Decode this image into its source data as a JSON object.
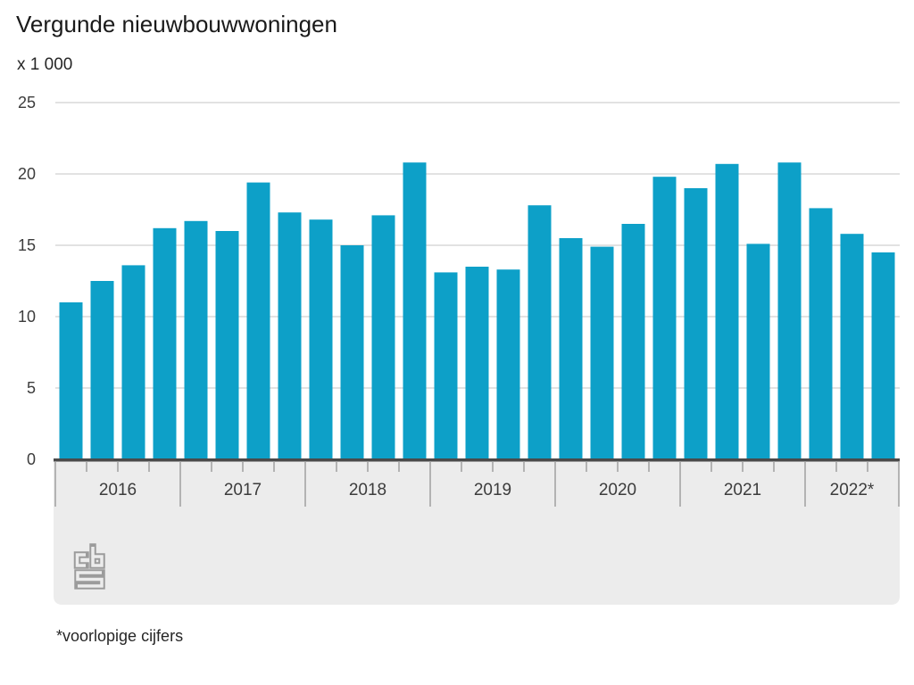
{
  "title": "Vergunde nieuwbouwwoningen",
  "unit_label": "x 1 000",
  "footnote": "*voorlopige cijfers",
  "logo_name": "cbs-logo",
  "colors": {
    "bar": "#0da0c8",
    "gridline": "#c6c6c6",
    "axis_line": "#4a4a4a",
    "footer_band": "#ececec",
    "tick_line": "#a0a0a0",
    "title_text": "#1a1a1a",
    "axis_text": "#3c3c3c",
    "logo_stroke": "#9b9b9b"
  },
  "chart_data": {
    "type": "bar",
    "title": "Vergunde nieuwbouwwoningen",
    "unit": "x 1 000",
    "ylabel": "x 1 000",
    "ylim": [
      0,
      25
    ],
    "yticks": [
      0,
      5,
      10,
      15,
      20,
      25
    ],
    "grid": true,
    "legend": "none",
    "x_axis_note": "quarterly bars grouped per year",
    "groups": [
      {
        "year": "2016",
        "values": [
          11.0,
          12.5,
          13.6,
          16.2
        ]
      },
      {
        "year": "2017",
        "values": [
          16.7,
          16.0,
          19.4,
          17.3
        ]
      },
      {
        "year": "2018",
        "values": [
          16.8,
          15.0,
          17.1,
          20.8
        ]
      },
      {
        "year": "2019",
        "values": [
          13.1,
          13.5,
          13.3,
          17.8
        ]
      },
      {
        "year": "2020",
        "values": [
          15.5,
          14.9,
          16.5,
          19.8
        ]
      },
      {
        "year": "2021",
        "values": [
          19.0,
          20.7,
          15.1,
          20.8
        ]
      },
      {
        "year": "2022*",
        "values": [
          17.6,
          15.8,
          14.5
        ]
      }
    ],
    "footnote": "*voorlopige cijfers"
  }
}
